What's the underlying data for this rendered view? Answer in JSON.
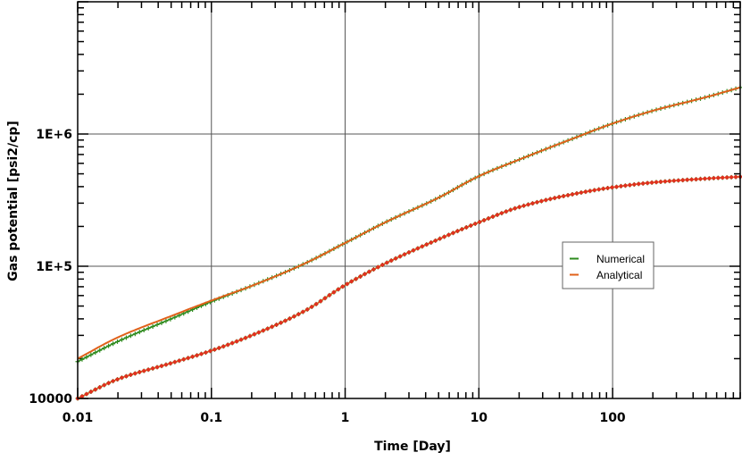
{
  "chart_data": {
    "type": "line",
    "title": "",
    "xlabel": "Time [Day]",
    "ylabel": "Gas potential [psi2/cp]",
    "xscale": "log",
    "yscale": "log",
    "xlim": [
      0.01,
      900
    ],
    "ylim": [
      10000,
      10000000
    ],
    "grid": true,
    "legend_position": "right",
    "x_ticks": [
      {
        "value": 0.01,
        "label": "0.01"
      },
      {
        "value": 0.1,
        "label": "0.1"
      },
      {
        "value": 1,
        "label": "1"
      },
      {
        "value": 10,
        "label": "10"
      },
      {
        "value": 100,
        "label": "100"
      }
    ],
    "y_ticks": [
      {
        "value": 10000,
        "label": "10000"
      },
      {
        "value": 100000,
        "label": "1E+5"
      },
      {
        "value": 1000000,
        "label": "1E+6"
      }
    ],
    "x": [
      0.01,
      0.02,
      0.05,
      0.1,
      0.2,
      0.5,
      1,
      2,
      5,
      10,
      20,
      50,
      100,
      200,
      500,
      900
    ],
    "series": [
      {
        "name": "Numerical",
        "group": "upper",
        "color": "#2e8b1e",
        "marker": "+",
        "values": [
          19000,
          27000,
          40000,
          54000,
          71000,
          105000,
          150000,
          215000,
          330000,
          480000,
          640000,
          920000,
          1200000,
          1500000,
          1900000,
          2250000
        ]
      },
      {
        "name": "Analytical",
        "group": "upper",
        "color": "#e0601a",
        "marker": "line",
        "values": [
          20000,
          29000,
          42000,
          55000,
          71000,
          105000,
          150000,
          215000,
          330000,
          480000,
          640000,
          920000,
          1200000,
          1500000,
          1900000,
          2250000
        ]
      },
      {
        "name": "Numerical",
        "group": "lower",
        "color": "#2e8b1e",
        "marker": "+",
        "values": [
          10000,
          14000,
          18500,
          23000,
          30000,
          46000,
          72000,
          105000,
          160000,
          215000,
          280000,
          350000,
          395000,
          430000,
          460000,
          475000
        ]
      },
      {
        "name": "Analytical",
        "group": "lower",
        "color": "#e0601a",
        "marker": "dot",
        "values": [
          10000,
          14000,
          18500,
          23000,
          30000,
          46000,
          72000,
          105000,
          160000,
          215000,
          280000,
          350000,
          395000,
          430000,
          460000,
          475000
        ]
      }
    ],
    "legend": [
      {
        "label": "Numerical",
        "color": "#2e8b1e"
      },
      {
        "label": "Analytical",
        "color": "#e0601a"
      }
    ]
  }
}
